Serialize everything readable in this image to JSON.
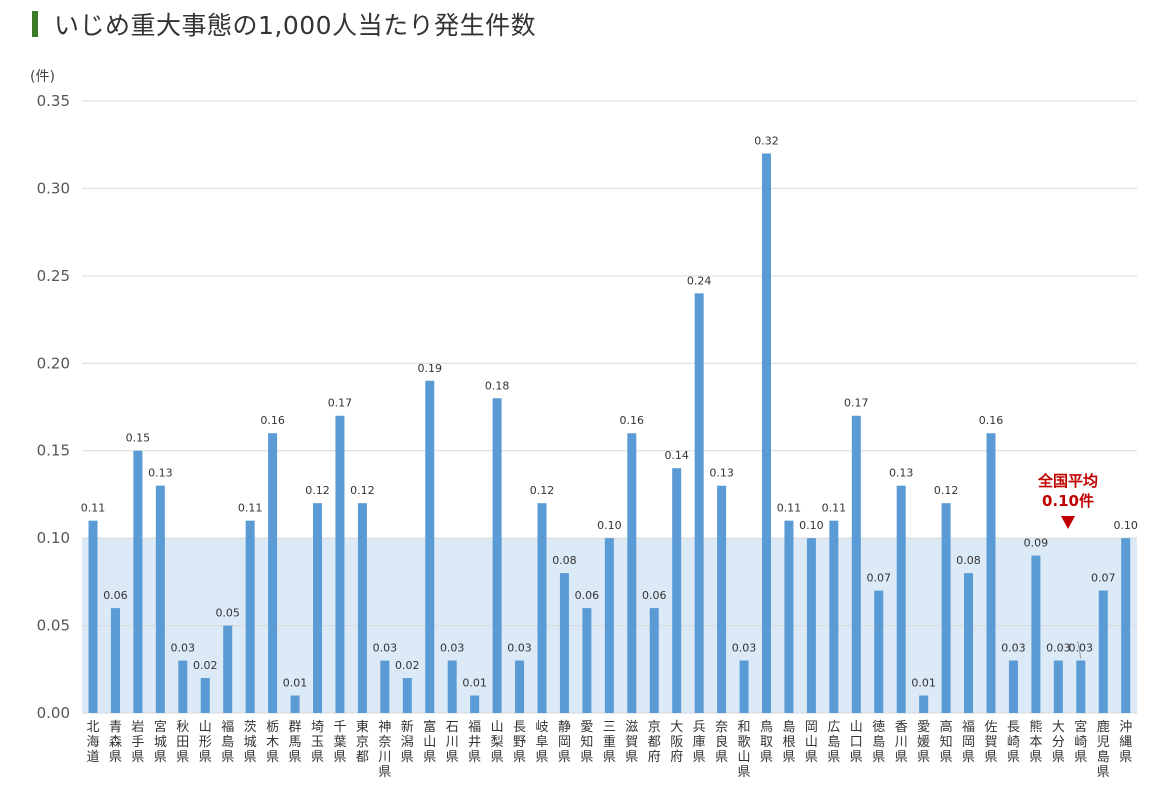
{
  "page": {
    "title": "いじめ重大事態の1,000人当たり発生件数"
  },
  "colors": {
    "bar": "#5b9bd5",
    "band": "#dce9f6",
    "grid": "#d9d9d9",
    "accent": "#c00000",
    "title_bar": "#3d7a2a"
  },
  "chart_data": {
    "type": "bar",
    "title": "いじめ重大事態の1,000人当たり発生件数",
    "ylabel": "(件)",
    "xlabel": "",
    "ylim": [
      0,
      0.35
    ],
    "yticks": [
      "0.00",
      "0.05",
      "0.10",
      "0.15",
      "0.20",
      "0.25",
      "0.30",
      "0.35"
    ],
    "grid": true,
    "average": {
      "label_line1": "全国平均",
      "label_line2": "0.10件",
      "value": 0.1
    },
    "categories": [
      "北海道",
      "青森県",
      "岩手県",
      "宮城県",
      "秋田県",
      "山形県",
      "福島県",
      "茨城県",
      "栃木県",
      "群馬県",
      "埼玉県",
      "千葉県",
      "東京都",
      "神奈川県",
      "新潟県",
      "富山県",
      "石川県",
      "福井県",
      "山梨県",
      "長野県",
      "岐阜県",
      "静岡県",
      "愛知県",
      "三重県",
      "滋賀県",
      "京都府",
      "大阪府",
      "兵庫県",
      "奈良県",
      "和歌山県",
      "鳥取県",
      "島根県",
      "岡山県",
      "広島県",
      "山口県",
      "徳島県",
      "香川県",
      "愛媛県",
      "高知県",
      "福岡県",
      "佐賀県",
      "長崎県",
      "熊本県",
      "大分県",
      "宮崎県",
      "鹿児島県",
      "沖縄県"
    ],
    "values": [
      0.11,
      0.06,
      0.15,
      0.13,
      0.03,
      0.02,
      0.05,
      0.11,
      0.16,
      0.01,
      0.12,
      0.17,
      0.12,
      0.03,
      0.02,
      0.19,
      0.03,
      0.01,
      0.18,
      0.03,
      0.12,
      0.08,
      0.06,
      0.1,
      0.16,
      0.06,
      0.14,
      0.24,
      0.13,
      0.03,
      0.32,
      0.11,
      0.1,
      0.11,
      0.17,
      0.07,
      0.13,
      0.01,
      0.12,
      0.08,
      0.16,
      0.03,
      0.09,
      0.03,
      0.03,
      0.07,
      0.1
    ],
    "data_labels": [
      "0.11",
      "0.06",
      "0.15",
      "0.13",
      "0.03",
      "0.02",
      "0.05",
      "0.11",
      "0.16",
      "0.01",
      "0.12",
      "0.17",
      "0.12",
      "0.03",
      "0.02",
      "0.19",
      "0.03",
      "0.01",
      "0.18",
      "0.03",
      "0.12",
      "0.08",
      "0.06",
      "0.10",
      "0.16",
      "0.06",
      "0.14",
      "0.24",
      "0.13",
      "0.03",
      "0.32",
      "0.11",
      "0.10",
      "0.11",
      "0.17",
      "0.07",
      "0.13",
      "0.01",
      "0.12",
      "0.08",
      "0.16",
      "0.03",
      "0.09",
      "0.03",
      "0.03",
      "0.07",
      "0.10"
    ]
  }
}
